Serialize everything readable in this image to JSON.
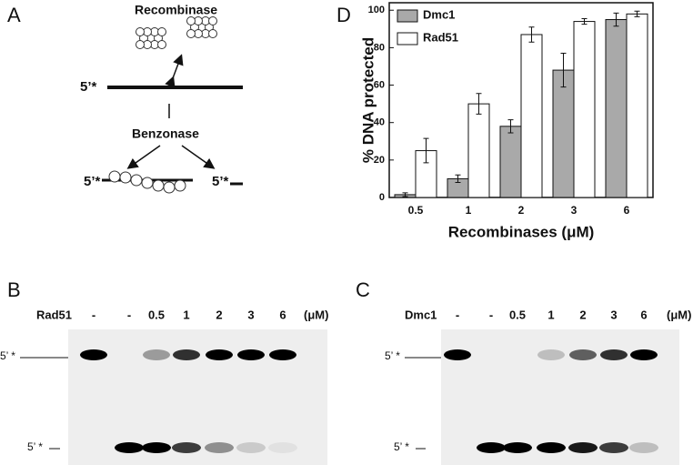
{
  "panel_a": {
    "label": "A",
    "recombinase": "Recombinase",
    "benzonase": "Benzonase",
    "end_label_top": "5’*",
    "end_label_left": "5’*",
    "end_label_right": "5’*"
  },
  "chart_data": {
    "type": "bar",
    "panel_label": "D",
    "categories": [
      "0.5",
      "1",
      "2",
      "3",
      "6"
    ],
    "series": [
      {
        "name": "Dmc1",
        "color": "#a9a9a9",
        "values": [
          1.5,
          10,
          38,
          68,
          95
        ],
        "errors": [
          1,
          2,
          3.5,
          9,
          3.5
        ]
      },
      {
        "name": "Rad51",
        "color": "#ffffff",
        "values": [
          25,
          50,
          87,
          94,
          98
        ],
        "errors": [
          6.5,
          5.5,
          4,
          1.5,
          1.5
        ]
      }
    ],
    "ylim": [
      0,
      104
    ],
    "yticks": [
      0,
      20,
      40,
      60,
      80,
      100
    ],
    "xlabel": "Recombinases (μM)",
    "ylabel": "% DNA protected",
    "legend": "upper left"
  },
  "gels": [
    {
      "label": "B",
      "protein": "Rad51",
      "lanes": [
        "-",
        "-",
        "0.5",
        "1",
        "2",
        "3",
        "6"
      ],
      "unit": "(μM)",
      "marker_top": "5’ *",
      "marker_bottom": "5’ *"
    },
    {
      "label": "C",
      "protein": "Dmc1",
      "lanes": [
        "-",
        "-",
        "0.5",
        "1",
        "2",
        "3",
        "6"
      ],
      "unit": "(μM)",
      "marker_top": "5’ *",
      "marker_bottom": "5’ *"
    }
  ]
}
